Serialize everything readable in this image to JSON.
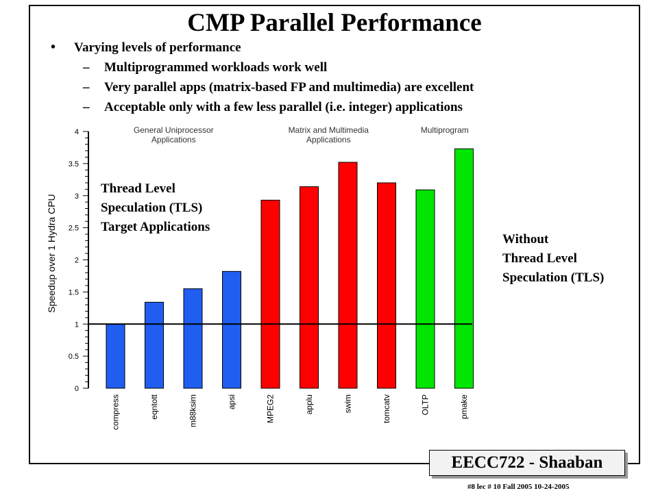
{
  "slide": {
    "title": "CMP Parallel Performance",
    "bullet": "Varying levels of performance",
    "sub_bullets": [
      "Multiprogrammed workloads work well",
      "Very parallel apps (matrix-based FP and multimedia) are excellent",
      "Acceptable only with a few less parallel (i.e. integer) applications"
    ],
    "dash_glyph": "–",
    "tls_label": [
      "Thread Level",
      "Speculation (TLS)",
      "Target Applications"
    ],
    "without_label": [
      "Without",
      "Thread Level",
      "Speculation (TLS)"
    ],
    "footer_title": "EECC722 - Shaaban",
    "footer_note": "#8   lec # 10     Fall 2005   10-24-2005"
  },
  "chart_data": {
    "type": "bar",
    "categories": [
      "compress",
      "eqntott",
      "m88ksim",
      "apsi",
      "MPEG2",
      "applu",
      "swim",
      "tomcatv",
      "OLTP",
      "pmake"
    ],
    "values": [
      1.0,
      1.34,
      1.55,
      1.82,
      2.93,
      3.14,
      3.52,
      3.2,
      3.09,
      3.73
    ],
    "colors": [
      "#1f5ef0",
      "#1f5ef0",
      "#1f5ef0",
      "#1f5ef0",
      "#ff0000",
      "#ff0000",
      "#ff0000",
      "#ff0000",
      "#00e600",
      "#00e600"
    ],
    "groups": [
      {
        "label": [
          "General Uniprocessor",
          "Applications"
        ],
        "range": [
          0,
          3
        ]
      },
      {
        "label": [
          "Matrix and Multimedia",
          "Applications"
        ],
        "range": [
          4,
          7
        ]
      },
      {
        "label": [
          "Multiprogram"
        ],
        "range": [
          8,
          9
        ]
      }
    ],
    "ylabel": "Speedup over 1 Hydra CPU",
    "ylim": [
      0,
      4
    ],
    "yticks": [
      "0",
      "0.5",
      "1",
      "1.5",
      "2",
      "2.5",
      "3",
      "3.5",
      "4"
    ],
    "reference_line": 1,
    "grid": false
  }
}
